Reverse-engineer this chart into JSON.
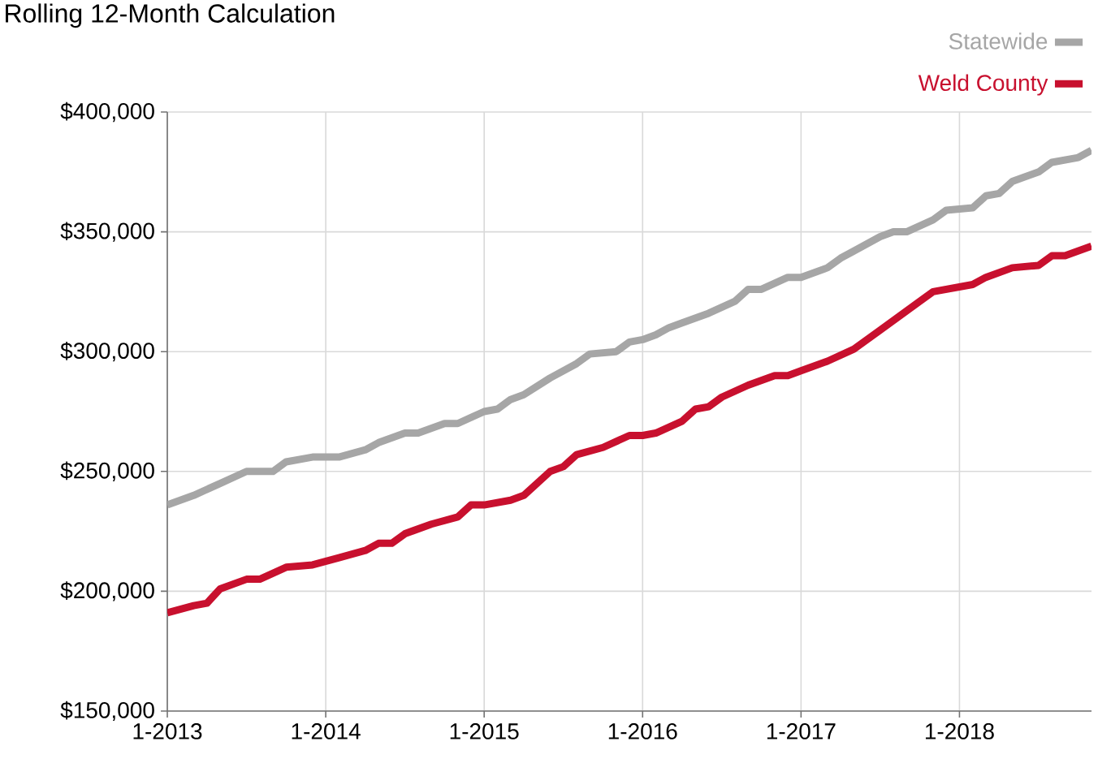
{
  "chart_data": {
    "type": "line",
    "title": "Rolling 12-Month Calculation",
    "xlim": [
      "2013-01",
      "2018-11"
    ],
    "ylim": [
      150000,
      400000
    ],
    "xticks": [
      {
        "value": "2013-01",
        "label": "1-2013"
      },
      {
        "value": "2014-01",
        "label": "1-2014"
      },
      {
        "value": "2015-01",
        "label": "1-2015"
      },
      {
        "value": "2016-01",
        "label": "1-2016"
      },
      {
        "value": "2017-01",
        "label": "1-2017"
      },
      {
        "value": "2018-01",
        "label": "1-2018"
      }
    ],
    "yticks": [
      {
        "value": 150000,
        "label": "$150,000"
      },
      {
        "value": 200000,
        "label": "$200,000"
      },
      {
        "value": 250000,
        "label": "$250,000"
      },
      {
        "value": 300000,
        "label": "$300,000"
      },
      {
        "value": 350000,
        "label": "$350,000"
      },
      {
        "value": 400000,
        "label": "$400,000"
      }
    ],
    "grid": true,
    "legend": "top right",
    "marker": "none",
    "line_style": "solid",
    "series": [
      {
        "name": "Statewide",
        "color": "#a6a6a6",
        "x": [
          "2013-01",
          "2013-03",
          "2013-05",
          "2013-07",
          "2013-09",
          "2013-10",
          "2013-12",
          "2014-02",
          "2014-04",
          "2014-05",
          "2014-07",
          "2014-08",
          "2014-10",
          "2014-11",
          "2015-01",
          "2015-02",
          "2015-03",
          "2015-04",
          "2015-06",
          "2015-08",
          "2015-09",
          "2015-11",
          "2015-12",
          "2016-01",
          "2016-02",
          "2016-03",
          "2016-04",
          "2016-06",
          "2016-08",
          "2016-09",
          "2016-10",
          "2016-12",
          "2017-01",
          "2017-03",
          "2017-04",
          "2017-05",
          "2017-07",
          "2017-08",
          "2017-09",
          "2017-11",
          "2017-12",
          "2018-02",
          "2018-03",
          "2018-04",
          "2018-05",
          "2018-07",
          "2018-08",
          "2018-10",
          "2018-11"
        ],
        "values": [
          236000,
          240000,
          245000,
          250000,
          250000,
          254000,
          256000,
          256000,
          259000,
          262000,
          266000,
          266000,
          270000,
          270000,
          275000,
          276000,
          280000,
          282000,
          289000,
          295000,
          299000,
          300000,
          304000,
          305000,
          307000,
          310000,
          312000,
          316000,
          321000,
          326000,
          326000,
          331000,
          331000,
          335000,
          339000,
          342000,
          348000,
          350000,
          350000,
          355000,
          359000,
          360000,
          365000,
          366000,
          371000,
          375000,
          379000,
          381000,
          384000
        ]
      },
      {
        "name": "Weld County",
        "color": "#c8102e",
        "x": [
          "2013-01",
          "2013-03",
          "2013-04",
          "2013-05",
          "2013-07",
          "2013-08",
          "2013-10",
          "2013-12",
          "2014-02",
          "2014-04",
          "2014-05",
          "2014-06",
          "2014-07",
          "2014-09",
          "2014-11",
          "2014-12",
          "2015-01",
          "2015-03",
          "2015-04",
          "2015-06",
          "2015-07",
          "2015-08",
          "2015-10",
          "2015-12",
          "2016-01",
          "2016-02",
          "2016-04",
          "2016-05",
          "2016-06",
          "2016-07",
          "2016-09",
          "2016-11",
          "2016-12",
          "2017-01",
          "2017-03",
          "2017-05",
          "2017-07",
          "2017-08",
          "2017-10",
          "2017-11",
          "2018-02",
          "2018-03",
          "2018-05",
          "2018-07",
          "2018-08",
          "2018-09",
          "2018-11"
        ],
        "values": [
          191000,
          194000,
          195000,
          201000,
          205000,
          205000,
          210000,
          211000,
          214000,
          217000,
          220000,
          220000,
          224000,
          228000,
          231000,
          236000,
          236000,
          238000,
          240000,
          250000,
          252000,
          257000,
          260000,
          265000,
          265000,
          266000,
          271000,
          276000,
          277000,
          281000,
          286000,
          290000,
          290000,
          292000,
          296000,
          301000,
          309000,
          313000,
          321000,
          325000,
          328000,
          331000,
          335000,
          336000,
          340000,
          340000,
          344000
        ]
      }
    ]
  }
}
